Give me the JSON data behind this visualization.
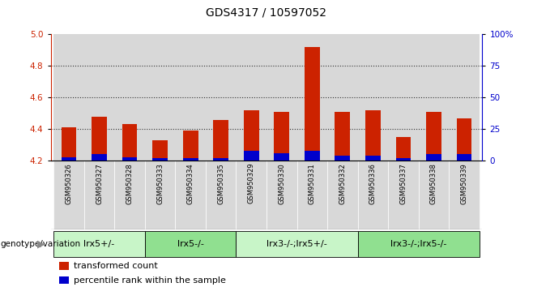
{
  "title": "GDS4317 / 10597052",
  "samples": [
    "GSM950326",
    "GSM950327",
    "GSM950328",
    "GSM950333",
    "GSM950334",
    "GSM950335",
    "GSM950329",
    "GSM950330",
    "GSM950331",
    "GSM950332",
    "GSM950336",
    "GSM950337",
    "GSM950338",
    "GSM950339"
  ],
  "red_values": [
    4.41,
    4.48,
    4.43,
    4.33,
    4.39,
    4.46,
    4.52,
    4.51,
    4.92,
    4.51,
    4.52,
    4.35,
    4.51,
    4.47
  ],
  "blue_values": [
    3,
    5,
    3,
    2,
    2,
    2,
    8,
    6,
    8,
    4,
    4,
    2,
    5,
    5
  ],
  "y_min": 4.2,
  "y_max": 5.0,
  "y_ticks": [
    4.2,
    4.4,
    4.6,
    4.8,
    5.0
  ],
  "right_y_ticks": [
    0,
    25,
    50,
    75,
    100
  ],
  "right_y_tick_labels": [
    "0",
    "25",
    "50",
    "75",
    "100%"
  ],
  "groups": [
    {
      "label": "lrx5+/-",
      "start": 0,
      "end": 3,
      "color": "#c8f5c8"
    },
    {
      "label": "lrx5-/-",
      "start": 3,
      "end": 6,
      "color": "#90e090"
    },
    {
      "label": "lrx3-/-;lrx5+/-",
      "start": 6,
      "end": 10,
      "color": "#c8f5c8"
    },
    {
      "label": "lrx3-/-;lrx5-/-",
      "start": 10,
      "end": 14,
      "color": "#90e090"
    }
  ],
  "genotype_label": "genotype/variation",
  "legend_red": "transformed count",
  "legend_blue": "percentile rank within the sample",
  "red_color": "#cc2200",
  "blue_color": "#0000cc",
  "bg_gray": "#d8d8d8",
  "dotted_color": "#333333",
  "title_fontsize": 10,
  "tick_fontsize": 7.5,
  "sample_fontsize": 6,
  "group_fontsize": 8,
  "legend_fontsize": 8
}
